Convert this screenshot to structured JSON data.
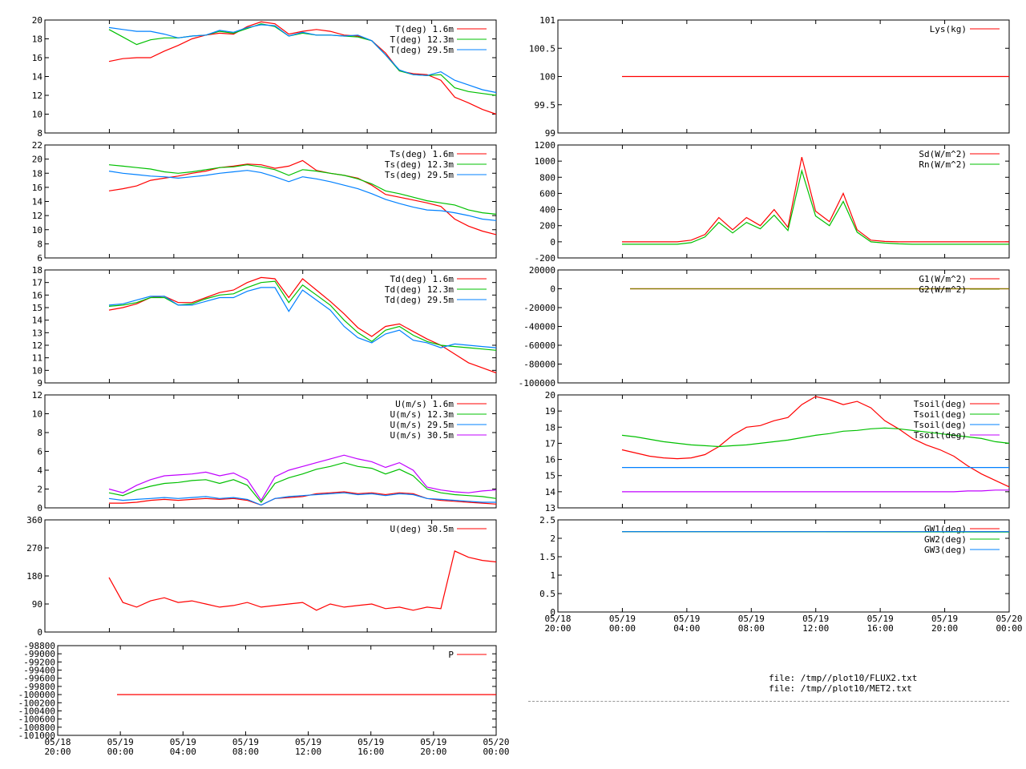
{
  "colors": {
    "red": "#ff0000",
    "green": "#00c000",
    "blue": "#0080ff",
    "purple": "#c000ff"
  },
  "x_axis": {
    "ticks": [
      "05/18\n20:00",
      "05/19\n00:00",
      "05/19\n04:00",
      "05/19\n08:00",
      "05/19\n12:00",
      "05/19\n16:00",
      "05/19\n20:00",
      "05/20\n00:00"
    ]
  },
  "files": [
    "file: /tmp//plot10/FLUX2.txt",
    "file: /tmp//plot10/MET2.txt"
  ],
  "chart_data": [
    {
      "id": "T",
      "type": "line",
      "ylim": [
        8,
        20
      ],
      "yticks": [
        "8",
        "10",
        "12",
        "14",
        "16",
        "18",
        "20"
      ],
      "series": [
        {
          "name": "T(deg)  1.6m",
          "color": "red"
        },
        {
          "name": "T(deg) 12.3m",
          "color": "green"
        },
        {
          "name": "T(deg) 29.5m",
          "color": "blue"
        }
      ],
      "x": [
        0,
        1,
        2,
        3,
        4,
        5,
        6,
        7,
        8,
        9,
        10,
        11,
        12,
        13,
        14,
        15,
        16,
        17,
        18,
        19,
        20,
        21,
        22,
        23,
        24,
        25,
        26,
        27,
        28
      ],
      "values": [
        [
          15.6,
          15.9,
          16.0,
          16.0,
          16.7,
          17.3,
          18.0,
          18.4,
          18.6,
          18.5,
          19.3,
          19.8,
          19.6,
          18.5,
          18.8,
          19.0,
          18.8,
          18.4,
          18.3,
          17.8,
          16.5,
          14.6,
          14.3,
          14.2,
          13.6,
          11.8,
          11.2,
          10.5,
          10.0
        ],
        [
          19.0,
          18.2,
          17.4,
          17.9,
          18.1,
          18.1,
          18.3,
          18.4,
          18.8,
          18.6,
          19.1,
          19.6,
          19.3,
          18.3,
          18.6,
          18.4,
          18.4,
          18.3,
          18.2,
          17.8,
          16.3,
          14.6,
          14.2,
          14.1,
          14.2,
          12.8,
          12.4,
          12.2,
          12.0
        ],
        [
          19.2,
          19.0,
          18.8,
          18.8,
          18.5,
          18.1,
          18.3,
          18.4,
          18.9,
          18.7,
          19.2,
          19.5,
          19.4,
          18.3,
          18.7,
          18.4,
          18.4,
          18.3,
          18.4,
          17.8,
          16.3,
          14.7,
          14.2,
          14.1,
          14.5,
          13.6,
          13.1,
          12.6,
          12.3
        ]
      ]
    },
    {
      "id": "Ts",
      "type": "line",
      "ylim": [
        6,
        22
      ],
      "yticks": [
        "6",
        "8",
        "10",
        "12",
        "14",
        "16",
        "18",
        "20",
        "22"
      ],
      "series": [
        {
          "name": "Ts(deg)  1.6m",
          "color": "red"
        },
        {
          "name": "Ts(deg) 12.3m",
          "color": "green"
        },
        {
          "name": "Ts(deg) 29.5m",
          "color": "blue"
        }
      ],
      "x": [
        0,
        1,
        2,
        3,
        4,
        5,
        6,
        7,
        8,
        9,
        10,
        11,
        12,
        13,
        14,
        15,
        16,
        17,
        18,
        19,
        20,
        21,
        22,
        23,
        24,
        25,
        26,
        27,
        28
      ],
      "values": [
        [
          15.5,
          15.8,
          16.2,
          17.0,
          17.3,
          17.6,
          18.0,
          18.3,
          18.8,
          19.0,
          19.3,
          19.2,
          18.7,
          19.0,
          19.8,
          18.4,
          18.0,
          17.7,
          17.3,
          16.3,
          15.0,
          14.6,
          14.2,
          13.8,
          13.3,
          11.5,
          10.5,
          9.8,
          9.3
        ],
        [
          19.2,
          19.0,
          18.8,
          18.6,
          18.2,
          18.0,
          18.2,
          18.5,
          18.8,
          18.9,
          19.2,
          18.9,
          18.5,
          17.7,
          18.5,
          18.3,
          18.0,
          17.7,
          17.2,
          16.5,
          15.5,
          15.1,
          14.6,
          14.1,
          13.8,
          13.5,
          12.8,
          12.4,
          12.2
        ],
        [
          18.3,
          18.0,
          17.8,
          17.6,
          17.5,
          17.3,
          17.5,
          17.7,
          18.0,
          18.2,
          18.4,
          18.1,
          17.5,
          16.8,
          17.5,
          17.2,
          16.8,
          16.3,
          15.8,
          15.1,
          14.3,
          13.7,
          13.2,
          12.8,
          12.7,
          12.4,
          12.0,
          11.5,
          11.3
        ]
      ]
    },
    {
      "id": "Td",
      "type": "line",
      "ylim": [
        9,
        18
      ],
      "yticks": [
        "9",
        "10",
        "11",
        "12",
        "13",
        "14",
        "15",
        "16",
        "17",
        "18"
      ],
      "series": [
        {
          "name": "Td(deg)  1.6m",
          "color": "red"
        },
        {
          "name": "Td(deg) 12.3m",
          "color": "green"
        },
        {
          "name": "Td(deg) 29.5m",
          "color": "blue"
        }
      ],
      "x": [
        0,
        1,
        2,
        3,
        4,
        5,
        6,
        7,
        8,
        9,
        10,
        11,
        12,
        13,
        14,
        15,
        16,
        17,
        18,
        19,
        20,
        21,
        22,
        23,
        24,
        25,
        26,
        27,
        28
      ],
      "values": [
        [
          14.8,
          15.0,
          15.3,
          15.8,
          15.9,
          15.4,
          15.4,
          15.8,
          16.2,
          16.4,
          17.0,
          17.4,
          17.3,
          15.8,
          17.3,
          16.4,
          15.5,
          14.5,
          13.4,
          12.7,
          13.5,
          13.7,
          13.1,
          12.5,
          12.0,
          11.3,
          10.6,
          10.2,
          9.8
        ],
        [
          15.1,
          15.2,
          15.4,
          15.8,
          15.8,
          15.2,
          15.3,
          15.7,
          16.0,
          16.1,
          16.6,
          17.0,
          17.1,
          15.4,
          16.8,
          16.0,
          15.2,
          14.0,
          13.0,
          12.3,
          13.2,
          13.5,
          12.8,
          12.3,
          12.0,
          11.9,
          11.8,
          11.7,
          11.6
        ],
        [
          15.2,
          15.3,
          15.6,
          15.9,
          15.9,
          15.2,
          15.2,
          15.5,
          15.8,
          15.8,
          16.3,
          16.6,
          16.6,
          14.7,
          16.4,
          15.6,
          14.8,
          13.5,
          12.6,
          12.2,
          12.9,
          13.2,
          12.4,
          12.2,
          11.8,
          12.1,
          12.0,
          11.9,
          11.8
        ]
      ]
    },
    {
      "id": "U",
      "type": "line",
      "ylim": [
        0,
        12
      ],
      "yticks": [
        "0",
        "2",
        "4",
        "6",
        "8",
        "10",
        "12"
      ],
      "series": [
        {
          "name": "U(m/s)  1.6m",
          "color": "red"
        },
        {
          "name": "U(m/s) 12.3m",
          "color": "green"
        },
        {
          "name": "U(m/s) 29.5m",
          "color": "blue"
        },
        {
          "name": "U(m/s) 30.5m",
          "color": "purple"
        }
      ],
      "x": [
        0,
        1,
        2,
        3,
        4,
        5,
        6,
        7,
        8,
        9,
        10,
        11,
        12,
        13,
        14,
        15,
        16,
        17,
        18,
        19,
        20,
        21,
        22,
        23,
        24,
        25,
        26,
        27,
        28
      ],
      "values": [
        [
          0.5,
          0.5,
          0.6,
          0.8,
          0.9,
          0.8,
          0.9,
          1.0,
          0.9,
          1.0,
          0.8,
          0.3,
          1.0,
          1.1,
          1.2,
          1.5,
          1.6,
          1.7,
          1.5,
          1.6,
          1.4,
          1.6,
          1.5,
          1.0,
          0.8,
          0.7,
          0.6,
          0.5,
          0.4
        ],
        [
          1.6,
          1.3,
          1.9,
          2.3,
          2.6,
          2.7,
          2.9,
          3.0,
          2.6,
          3.0,
          2.4,
          0.6,
          2.6,
          3.2,
          3.6,
          4.1,
          4.4,
          4.8,
          4.4,
          4.2,
          3.6,
          4.1,
          3.4,
          2.0,
          1.6,
          1.4,
          1.3,
          1.2,
          1.0
        ],
        [
          1.0,
          0.8,
          0.9,
          1.0,
          1.1,
          1.0,
          1.1,
          1.2,
          1.0,
          1.1,
          0.9,
          0.3,
          1.0,
          1.2,
          1.3,
          1.4,
          1.5,
          1.6,
          1.4,
          1.5,
          1.3,
          1.5,
          1.4,
          1.0,
          0.9,
          0.8,
          0.7,
          0.6,
          0.6
        ],
        [
          2.0,
          1.6,
          2.4,
          3.0,
          3.4,
          3.5,
          3.6,
          3.8,
          3.4,
          3.7,
          3.0,
          0.8,
          3.3,
          4.0,
          4.4,
          4.8,
          5.2,
          5.6,
          5.2,
          4.9,
          4.3,
          4.8,
          4.0,
          2.2,
          1.9,
          1.7,
          1.6,
          1.8,
          1.9
        ]
      ]
    },
    {
      "id": "Dir",
      "type": "line",
      "ylim": [
        0,
        360
      ],
      "yticks": [
        "0",
        "90",
        "180",
        "270",
        "360"
      ],
      "series": [
        {
          "name": "U(deg)  30.5m",
          "color": "red"
        }
      ],
      "x": [
        0,
        1,
        2,
        3,
        4,
        5,
        6,
        7,
        8,
        9,
        10,
        11,
        12,
        13,
        14,
        15,
        16,
        17,
        18,
        19,
        20,
        21,
        22,
        23,
        24,
        25,
        26,
        27,
        28
      ],
      "values": [
        [
          175,
          95,
          80,
          100,
          110,
          95,
          100,
          90,
          80,
          85,
          95,
          80,
          85,
          90,
          95,
          70,
          90,
          80,
          85,
          90,
          75,
          80,
          70,
          80,
          75,
          260,
          240,
          230,
          225
        ]
      ]
    },
    {
      "id": "P",
      "type": "line",
      "ylim": [
        -101000,
        -98800
      ],
      "yticks": [
        "-101000",
        "-100800",
        "-100600",
        "-100400",
        "-100200",
        "-100000",
        "-99800",
        "-99600",
        "-99400",
        "-99200",
        "-99000",
        "-98800"
      ],
      "series": [
        {
          "name": "P",
          "color": "red"
        }
      ],
      "x": [
        0,
        28
      ],
      "values": [
        [
          -100000,
          -100000
        ]
      ]
    },
    {
      "id": "Lys",
      "type": "line",
      "ylim": [
        99,
        101
      ],
      "yticks": [
        "99",
        "99.5",
        "100",
        "100.5",
        "101"
      ],
      "series": [
        {
          "name": "Lys(kg)",
          "color": "red"
        }
      ],
      "x": [
        0,
        28
      ],
      "values": [
        [
          100,
          100
        ]
      ]
    },
    {
      "id": "Rad",
      "type": "line",
      "ylim": [
        -200,
        1200
      ],
      "yticks": [
        "-200",
        "0",
        "200",
        "400",
        "600",
        "800",
        "1000",
        "1200"
      ],
      "series": [
        {
          "name": "Sd(W/m^2)",
          "color": "red"
        },
        {
          "name": "Rn(W/m^2)",
          "color": "green"
        }
      ],
      "x": [
        0,
        1,
        2,
        3,
        4,
        5,
        6,
        7,
        8,
        9,
        10,
        11,
        12,
        13,
        14,
        15,
        16,
        17,
        18,
        19,
        20,
        21,
        22,
        23,
        24,
        25,
        26,
        27,
        28
      ],
      "values": [
        [
          0,
          0,
          0,
          0,
          0,
          20,
          90,
          300,
          150,
          300,
          200,
          400,
          180,
          1050,
          380,
          250,
          600,
          150,
          20,
          5,
          0,
          0,
          0,
          0,
          0,
          0,
          0,
          0,
          0
        ],
        [
          -30,
          -30,
          -30,
          -30,
          -30,
          -10,
          60,
          240,
          110,
          240,
          160,
          330,
          140,
          880,
          320,
          200,
          500,
          120,
          0,
          -15,
          -25,
          -30,
          -30,
          -30,
          -30,
          -30,
          -30,
          -30,
          -30
        ]
      ]
    },
    {
      "id": "G",
      "type": "line",
      "ylim": [
        -100000,
        20000
      ],
      "yticks": [
        "-100000",
        "-80000",
        "-60000",
        "-40000",
        "-20000",
        "0",
        "20000"
      ],
      "series": [
        {
          "name": "G1(W/m^2)",
          "color": "red"
        },
        {
          "name": "G2(W/m^2)",
          "color": "olive"
        }
      ],
      "x": [
        0,
        28
      ],
      "values": [
        [
          0,
          0
        ],
        [
          0,
          0
        ]
      ]
    },
    {
      "id": "Tsoil",
      "type": "line",
      "ylim": [
        13,
        20
      ],
      "yticks": [
        "13",
        "14",
        "15",
        "16",
        "17",
        "18",
        "19",
        "20"
      ],
      "series": [
        {
          "name": "Tsoil(deg)",
          "color": "red"
        },
        {
          "name": "Tsoil(deg)",
          "color": "green"
        },
        {
          "name": "Tsoil(deg)",
          "color": "blue"
        },
        {
          "name": "Tsoil(deg)",
          "color": "purple"
        }
      ],
      "x": [
        0,
        1,
        2,
        3,
        4,
        5,
        6,
        7,
        8,
        9,
        10,
        11,
        12,
        13,
        14,
        15,
        16,
        17,
        18,
        19,
        20,
        21,
        22,
        23,
        24,
        25,
        26,
        27,
        28
      ],
      "values": [
        [
          16.6,
          16.4,
          16.2,
          16.1,
          16.05,
          16.1,
          16.3,
          16.8,
          17.5,
          18.0,
          18.1,
          18.4,
          18.6,
          19.4,
          19.9,
          19.7,
          19.4,
          19.6,
          19.2,
          18.4,
          17.9,
          17.3,
          16.9,
          16.6,
          16.2,
          15.6,
          15.1,
          14.7,
          14.3
        ],
        [
          17.5,
          17.4,
          17.25,
          17.1,
          17.0,
          16.9,
          16.85,
          16.8,
          16.85,
          16.9,
          17.0,
          17.1,
          17.2,
          17.35,
          17.5,
          17.6,
          17.75,
          17.8,
          17.9,
          17.95,
          17.9,
          17.8,
          17.7,
          17.6,
          17.5,
          17.4,
          17.3,
          17.1,
          17.0
        ],
        [
          15.5,
          15.5,
          15.5,
          15.5,
          15.5,
          15.5,
          15.5,
          15.5,
          15.5,
          15.5,
          15.5,
          15.5,
          15.5,
          15.5,
          15.5,
          15.5,
          15.5,
          15.5,
          15.5,
          15.5,
          15.5,
          15.5,
          15.5,
          15.5,
          15.5,
          15.5,
          15.5,
          15.5,
          15.5
        ],
        [
          14.0,
          14.0,
          14.0,
          14.0,
          14.0,
          14.0,
          14.0,
          14.0,
          14.0,
          14.0,
          14.0,
          14.0,
          14.0,
          14.0,
          14.0,
          14.0,
          14.0,
          14.0,
          14.0,
          14.0,
          14.0,
          14.0,
          14.0,
          14.0,
          14.0,
          14.05,
          14.05,
          14.1,
          14.1
        ]
      ]
    },
    {
      "id": "GW",
      "type": "line",
      "ylim": [
        0,
        2.5
      ],
      "yticks": [
        "0",
        "0.5",
        "1",
        "1.5",
        "2",
        "2.5"
      ],
      "series": [
        {
          "name": "GW1(deg)",
          "color": "red"
        },
        {
          "name": "GW2(deg)",
          "color": "green"
        },
        {
          "name": "GW3(deg)",
          "color": "blue"
        }
      ],
      "x": [
        0,
        28
      ],
      "values": [
        [
          2.18,
          2.18
        ],
        [
          2.18,
          2.17
        ],
        [
          2.18,
          2.18
        ]
      ]
    }
  ]
}
